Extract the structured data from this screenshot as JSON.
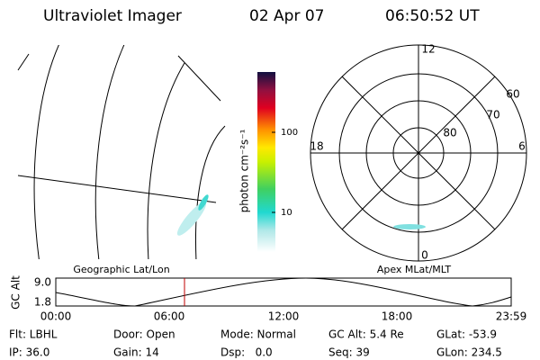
{
  "header": {
    "instrument": "Ultraviolet Imager",
    "date": "02 Apr 07",
    "time": "06:50:52 UT"
  },
  "colorbar": {
    "label": "photon cm⁻²s⁻¹",
    "ticks": [
      "100",
      "10"
    ]
  },
  "left_panel": {
    "caption": "Geographic Lat/Lon"
  },
  "right_panel": {
    "caption": "Apex MLat/MLT",
    "mlt_labels": [
      "12",
      "18",
      "6",
      "0"
    ],
    "lat_labels": [
      "60",
      "70",
      "80"
    ]
  },
  "altitude_plot": {
    "axis_label": "GC Alt",
    "y_labels": [
      "9.0",
      "1.8"
    ],
    "x_labels": [
      "00:00",
      "06:00",
      "12:00",
      "18:00",
      "23:59"
    ]
  },
  "footer": {
    "rows": [
      [
        "Flt: LBHL",
        "Door: Open",
        "Mode: Normal",
        "GC Alt: 5.4 Re",
        "GLat: -53.9"
      ],
      [
        "IP: 36.0",
        "Gain: 14",
        "Dsp:   0.0",
        "Seq: 39",
        "GLon: 234.5"
      ]
    ]
  }
}
